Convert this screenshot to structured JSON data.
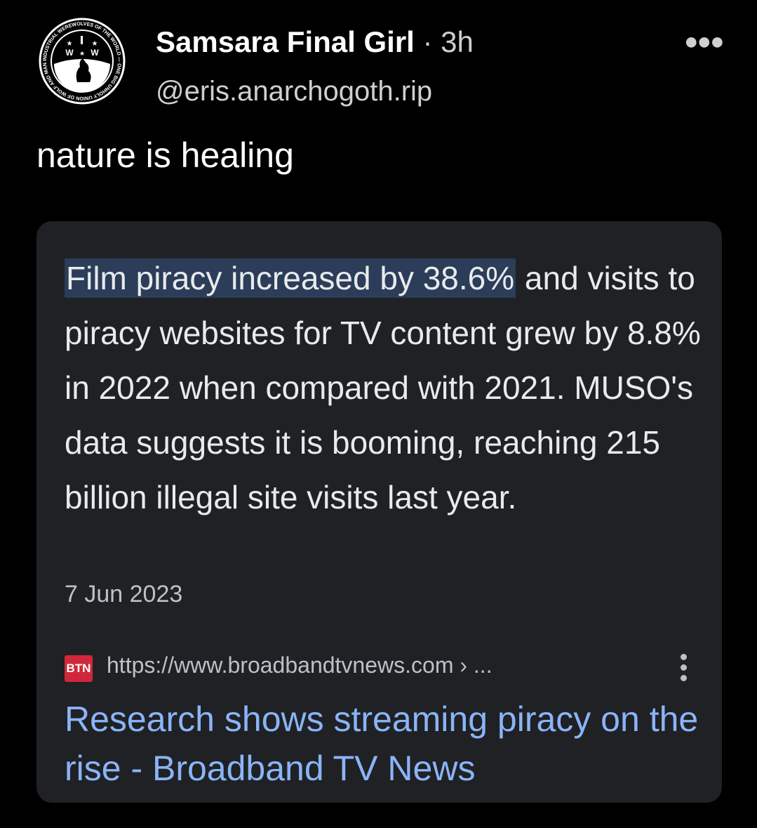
{
  "post": {
    "author_name": "Samsara Final Girl",
    "separator": " · ",
    "time": "3h",
    "handle": "@eris.anarchogoth.rip",
    "more_icon": "more-horizontal-icon",
    "text": "nature is healing",
    "avatar_logo_text": "INDUSTRIAL WEREWOLVES OF THE WORLD — ONE BIG UNHOLY UNION OF WOLF AND MAN"
  },
  "card": {
    "highlight": "Film piracy increased by 38.6%",
    "snippet_rest": " and visits to piracy websites for TV content grew by 8.8% in 2022 when compared with 2021. MUSO's data suggests it is booming, reaching 215 billion illegal site visits last year.",
    "date": "7 Jun 2023",
    "favicon_text": "BTN",
    "url": "https://www.broadbandtvnews.com › ...",
    "title": "Research shows streaming piracy on the rise - Broadband TV News",
    "colors": {
      "background": "#202124",
      "link": "#8ab4f8",
      "highlight": "#2b3d58",
      "favicon": "#d0283a"
    }
  }
}
